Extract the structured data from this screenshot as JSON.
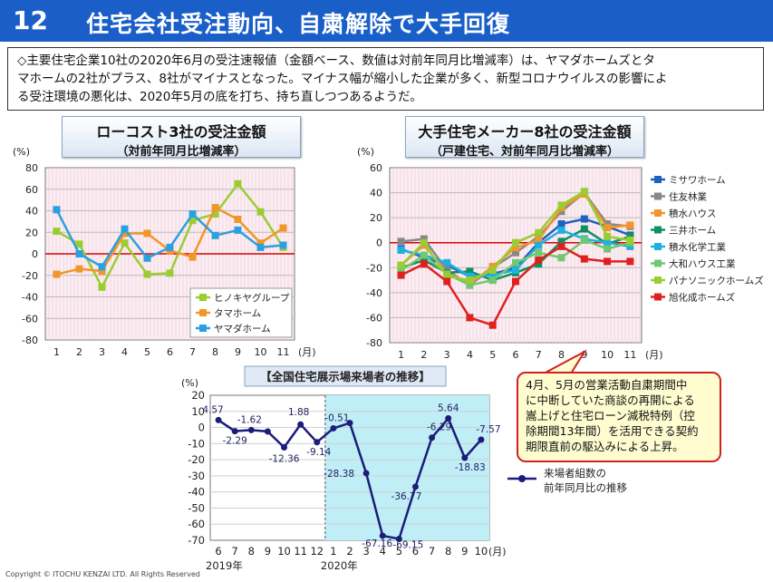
{
  "header": {
    "number": "12",
    "title": "住宅会社受注動向、自粛解除で大手回復"
  },
  "summary": {
    "line1": "◇主要住宅企業10社の2020年6月の受注速報値（金額ベース、数値は対前年同月比増減率）は、ヤマダホームズとタ",
    "line2": "マホームの2社がプラス、8社がマイナスとなった。マイナス幅が縮小した企業が多く、新型コロナウイルスの影響によ",
    "line3": "る受注環境の悪化は、2020年5月の底を打ち、持ち直しつつあるようだ。"
  },
  "note": {
    "lines": [
      "4月、5月の営業活動自粛期間中",
      "に中断していた商談の再開による",
      "嵩上げと住宅ローン減税特例（控",
      "除期間13年間）を活用できる契約",
      "期限直前の駆込みによる上昇。"
    ]
  },
  "copyright": "Copyright © ITOCHU KENZAI LTD.  All Rights Reserved",
  "chart_data": [
    {
      "type": "line",
      "title": "ローコスト3社の受注金額",
      "subtitle": "（対前年同月比増減率）",
      "ylabel": "(%)",
      "xlabel": "(月)",
      "ylim": [
        -80,
        80
      ],
      "yticks": [
        80,
        60,
        40,
        20,
        0,
        -20,
        -40,
        -60,
        -80
      ],
      "x": [
        1,
        2,
        3,
        4,
        5,
        6,
        7,
        8,
        9,
        10,
        11
      ],
      "legend_position": "bottom-right",
      "series": [
        {
          "name": "ヒノキヤグループ",
          "color": "#9acd32",
          "values": [
            21,
            9,
            -31,
            10,
            -19,
            -18,
            31,
            37,
            65,
            39,
            6
          ]
        },
        {
          "name": "タマホーム",
          "color": "#f0962a",
          "values": [
            -19,
            -14,
            -16,
            19,
            19,
            3,
            -3,
            43,
            32,
            10,
            24
          ]
        },
        {
          "name": "ヤマダホーム",
          "color": "#2ba0e0",
          "values": [
            41,
            0,
            -12,
            23,
            -4,
            6,
            37,
            17,
            22,
            6,
            8
          ]
        }
      ]
    },
    {
      "type": "line",
      "title": "大手住宅メーカー8社の受注金額",
      "subtitle": "（戸建住宅、対前年同月比増減率）",
      "ylabel": "(%)",
      "xlabel": "(月)",
      "ylim": [
        -80,
        60
      ],
      "yticks": [
        60,
        40,
        20,
        0,
        -20,
        -40,
        -60,
        -80
      ],
      "x": [
        1,
        2,
        3,
        4,
        5,
        6,
        7,
        8,
        9,
        10,
        11
      ],
      "legend_position": "right",
      "series": [
        {
          "name": "ミサワホーム",
          "color": "#2060c0",
          "values": [
            -5,
            -12,
            -18,
            -27,
            -25,
            -20,
            0,
            15,
            19,
            13,
            6
          ]
        },
        {
          "name": "住友林業",
          "color": "#888888",
          "values": [
            1,
            3,
            -22,
            -34,
            -20,
            -8,
            5,
            25,
            40,
            15,
            13
          ]
        },
        {
          "name": "積水ハウス",
          "color": "#f0962a",
          "values": [
            -18,
            -2,
            -24,
            -33,
            -19,
            -4,
            2,
            28,
            39,
            12,
            14
          ]
        },
        {
          "name": "三井ホーム",
          "color": "#109060",
          "values": [
            -20,
            -14,
            -24,
            -23,
            -30,
            -24,
            -17,
            1,
            11,
            -1,
            5
          ]
        },
        {
          "name": "積水化学工業",
          "color": "#20b0e0",
          "values": [
            -6,
            -10,
            -16,
            -27,
            -26,
            -22,
            -2,
            10,
            3,
            0,
            -3
          ]
        },
        {
          "name": "大和ハウス工業",
          "color": "#70c870",
          "values": [
            -22,
            -10,
            -25,
            -34,
            -30,
            -16,
            -8,
            -12,
            2,
            -5,
            0
          ]
        },
        {
          "name": "パナソニックホームズ",
          "color": "#9acd32",
          "values": [
            -18,
            0,
            -27,
            -30,
            -22,
            0,
            8,
            30,
            41,
            5,
            2
          ]
        },
        {
          "name": "旭化成ホームズ",
          "color": "#e02020",
          "values": [
            -26,
            -17,
            -31,
            -60,
            -66,
            -31,
            -14,
            -3,
            -13,
            -15,
            -15
          ]
        }
      ]
    },
    {
      "type": "line",
      "title": "【全国住宅展示場来場者の推移】",
      "ylabel": "(%)",
      "xlabel": "(月)",
      "ylim": [
        -70,
        20
      ],
      "yticks": [
        20,
        10,
        0,
        -10,
        -20,
        -30,
        -40,
        -50,
        -60,
        -70
      ],
      "categories": [
        "6",
        "7",
        "8",
        "9",
        "10",
        "11",
        "12",
        "1",
        "2",
        "3",
        "4",
        "5",
        "6",
        "7",
        "8",
        "9",
        "10"
      ],
      "year_labels": [
        {
          "label": "2019年",
          "at": 0
        },
        {
          "label": "2020年",
          "at": 7
        }
      ],
      "highlight_from": 7,
      "series": [
        {
          "name": "来場者組数の\n前年同月比の推移",
          "color": "#1c1c7a",
          "values": [
            4.57,
            -2.29,
            -1.62,
            -2.5,
            -12.36,
            1.88,
            -9.14,
            -0.51,
            2.8,
            -28.38,
            -67.16,
            -69.15,
            -36.77,
            -6.29,
            5.64,
            -18.83,
            -7.57
          ]
        }
      ],
      "data_labels": [
        "4.57",
        "-2.29",
        "-1.62",
        "",
        "-12.36",
        "1.88",
        "-9.14",
        "-0.51",
        "",
        "-28.38",
        "-67.16",
        "-69.15",
        "-36.77",
        "-6.29",
        "5.64",
        "-18.83",
        "-7.57"
      ],
      "legend_label_line1": "来場者組数の",
      "legend_label_line2": "前年同月比の推移"
    }
  ]
}
